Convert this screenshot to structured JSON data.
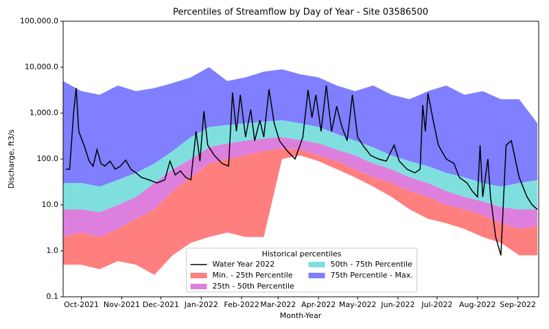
{
  "chart_data": {
    "type": "area",
    "title": "Percentiles of Streamflow by Day of Year - Site 03586500",
    "xlabel": "Month-Year",
    "ylabel": "Discharge, ft3/s",
    "yscale": "log",
    "xlim": [
      -14,
      351
    ],
    "ylim": [
      0.1,
      100000
    ],
    "xticks": [
      {
        "value": 0,
        "label": "Oct-2021"
      },
      {
        "value": 31,
        "label": "Nov-2021"
      },
      {
        "value": 61,
        "label": "Dec-2021"
      },
      {
        "value": 92,
        "label": "Jan-2022"
      },
      {
        "value": 123,
        "label": "Feb-2022"
      },
      {
        "value": 151,
        "label": "Mar-2022"
      },
      {
        "value": 182,
        "label": "Apr-2022"
      },
      {
        "value": 212,
        "label": "May-2022"
      },
      {
        "value": 243,
        "label": "Jun-2022"
      },
      {
        "value": 273,
        "label": "Jul-2022"
      },
      {
        "value": 304,
        "label": "Aug-2022"
      },
      {
        "value": 335,
        "label": "Sep-2022"
      }
    ],
    "yticks": [
      0.1,
      {
        "value": 1,
        "label": "1.0"
      },
      {
        "value": 10,
        "label": "10.0"
      },
      {
        "value": 100,
        "label": "100.0"
      },
      {
        "value": 1000,
        "label": "1,000.0"
      },
      {
        "value": 10000,
        "label": "10,000.0"
      },
      {
        "value": 100000,
        "label": "100,000.0"
      }
    ],
    "legend": {
      "title": "Historical percentiles",
      "loc": "lower center"
    },
    "x": [
      -14,
      0,
      14,
      28,
      42,
      56,
      70,
      84,
      98,
      112,
      126,
      140,
      154,
      168,
      182,
      196,
      210,
      224,
      238,
      252,
      266,
      280,
      294,
      308,
      322,
      336,
      350
    ],
    "series": [
      {
        "name": "Water Year 2022",
        "type": "line",
        "color": "#000000",
        "x": [
          -12,
          -9,
          -6,
          -4,
          -2,
          2,
          6,
          9,
          12,
          15,
          18,
          22,
          26,
          30,
          34,
          38,
          42,
          46,
          52,
          58,
          64,
          68,
          72,
          76,
          80,
          84,
          88,
          91,
          94,
          97,
          102,
          108,
          113,
          116,
          119,
          122,
          126,
          130,
          133,
          137,
          140,
          144,
          148,
          152,
          158,
          164,
          170,
          174,
          177,
          180,
          184,
          188,
          192,
          196,
          200,
          204,
          208,
          212,
          216,
          222,
          228,
          234,
          240,
          244,
          250,
          256,
          260,
          262,
          264,
          266,
          270,
          274,
          280,
          286,
          290,
          296,
          300,
          304,
          306,
          308,
          312,
          314,
          318,
          322,
          326,
          330,
          336,
          342,
          346,
          350
        ],
        "values": [
          60,
          60,
          1000,
          3500,
          400,
          200,
          90,
          70,
          160,
          80,
          70,
          90,
          60,
          70,
          95,
          60,
          50,
          40,
          35,
          30,
          35,
          90,
          45,
          55,
          40,
          35,
          400,
          90,
          1100,
          200,
          120,
          80,
          70,
          2800,
          400,
          2500,
          300,
          1200,
          250,
          700,
          300,
          3300,
          600,
          250,
          150,
          100,
          300,
          3200,
          800,
          2500,
          400,
          4000,
          400,
          1400,
          500,
          250,
          2500,
          300,
          200,
          120,
          100,
          90,
          200,
          90,
          60,
          50,
          60,
          1500,
          400,
          2700,
          700,
          200,
          100,
          80,
          40,
          30,
          20,
          15,
          200,
          15,
          100,
          15,
          2,
          0.8,
          200,
          250,
          40,
          15,
          10,
          8
        ]
      },
      {
        "name": "Min. - 25th Percentile",
        "color": "#ff7f7f",
        "low": [
          0.5,
          0.5,
          0.4,
          0.6,
          0.5,
          0.3,
          0.8,
          1.5,
          2,
          2.5,
          2,
          2,
          100,
          120,
          90,
          60,
          40,
          25,
          15,
          8,
          5,
          4,
          3,
          2,
          1.5,
          0.8,
          0.8
        ],
        "values": [
          2,
          2.5,
          2,
          3,
          5,
          8,
          20,
          40,
          80,
          100,
          120,
          150,
          170,
          160,
          120,
          90,
          60,
          40,
          30,
          20,
          15,
          10,
          8,
          6,
          4,
          3,
          3.5
        ]
      },
      {
        "name": "25th - 50th Percentile",
        "color": "#dd80dd",
        "low": [
          2,
          2.5,
          2,
          3,
          5,
          8,
          20,
          40,
          80,
          100,
          120,
          150,
          170,
          160,
          120,
          90,
          60,
          40,
          30,
          20,
          15,
          10,
          8,
          6,
          4,
          3,
          3.5
        ],
        "values": [
          8,
          8,
          7,
          10,
          15,
          30,
          60,
          100,
          180,
          220,
          250,
          280,
          300,
          260,
          220,
          160,
          120,
          80,
          60,
          40,
          30,
          20,
          15,
          12,
          9,
          8,
          8
        ]
      },
      {
        "name": "50th - 75th Percentile",
        "color": "#7fdfdf",
        "low": [
          8,
          8,
          7,
          10,
          15,
          30,
          60,
          100,
          180,
          220,
          250,
          280,
          300,
          260,
          220,
          160,
          120,
          80,
          60,
          40,
          30,
          20,
          15,
          12,
          9,
          8,
          8
        ],
        "values": [
          30,
          30,
          25,
          35,
          50,
          80,
          150,
          300,
          500,
          550,
          600,
          650,
          700,
          600,
          500,
          350,
          250,
          180,
          120,
          90,
          70,
          50,
          40,
          30,
          25,
          30,
          35
        ]
      },
      {
        "name": "75th Percentile - Max.",
        "color": "#7f7fff",
        "low": [
          30,
          30,
          25,
          35,
          50,
          80,
          150,
          300,
          500,
          550,
          600,
          650,
          700,
          600,
          500,
          350,
          250,
          180,
          120,
          90,
          70,
          50,
          40,
          30,
          25,
          30,
          35
        ],
        "values": [
          5000,
          3000,
          2500,
          4000,
          3000,
          3500,
          4500,
          6000,
          10000,
          5000,
          6000,
          8000,
          9000,
          7000,
          6000,
          4000,
          3000,
          4000,
          2500,
          2000,
          3000,
          4000,
          2500,
          3000,
          2000,
          2000,
          600
        ]
      }
    ]
  }
}
